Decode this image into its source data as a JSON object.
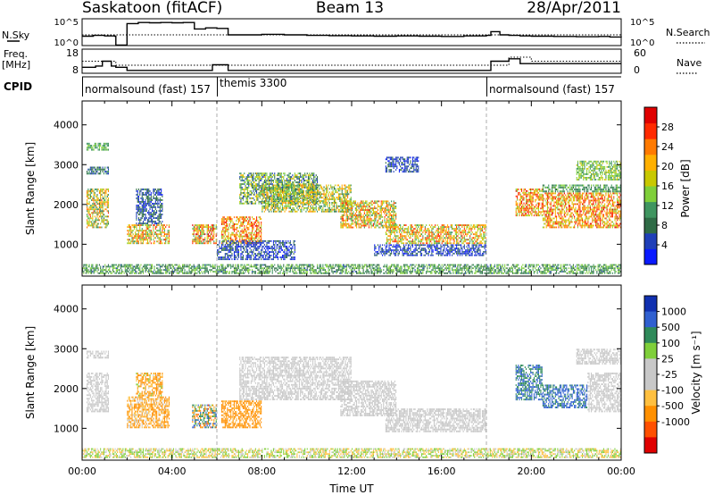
{
  "header": {
    "station": "Saskatoon (fitACF)",
    "beam": "Beam 13",
    "date": "28/Apr/2011"
  },
  "colors": {
    "power_scale": [
      "#0a1aff",
      "#1f3fb8",
      "#2f6b46",
      "#3f9560",
      "#7fcf3a",
      "#c8c800",
      "#ffb000",
      "#ff7a00",
      "#ff2a00",
      "#e00000"
    ],
    "velocity_scale": [
      "#e00000",
      "#ff5000",
      "#ff9000",
      "#ffc040",
      "#c8c8c8",
      "#c8c8c8",
      "#7fcf3a",
      "#2f8a5a",
      "#3060d0",
      "#1030b0"
    ]
  },
  "chart_data": [
    {
      "type": "line",
      "name": "noise-panel",
      "left_label": "N.Sky",
      "right_label": "N.Search",
      "left_ticks": [
        "10^5",
        "10^0"
      ],
      "right_ticks": [
        "10^5",
        "10^0"
      ],
      "x": [
        0,
        0.5,
        1.0,
        1.45,
        1.5,
        1.6,
        2.0,
        2.5,
        3.0,
        3.5,
        4.0,
        4.5,
        5.0,
        5.5,
        6.0,
        6.5,
        7.0,
        8.0,
        9.0,
        10.0,
        11.0,
        12.0,
        13.0,
        14.0,
        15.0,
        16.0,
        17.0,
        18.0,
        18.2,
        18.6,
        19.0,
        19.5,
        20.0,
        21.0,
        22.0,
        23.0,
        23.5,
        24.0
      ],
      "sky": [
        0.35,
        0.38,
        0.36,
        0.35,
        0.02,
        0.02,
        0.82,
        0.86,
        0.85,
        0.86,
        0.85,
        0.86,
        0.62,
        0.66,
        0.64,
        0.4,
        0.4,
        0.42,
        0.4,
        0.38,
        0.37,
        0.36,
        0.35,
        0.36,
        0.35,
        0.34,
        0.36,
        0.38,
        0.52,
        0.4,
        0.38,
        0.36,
        0.35,
        0.34,
        0.33,
        0.34,
        0.32,
        0.3
      ],
      "search": [
        0.4,
        0.4,
        0.4,
        0.4,
        0.4,
        0.4,
        0.4,
        0.4,
        0.4,
        0.4,
        0.4,
        0.4,
        0.4,
        0.4,
        0.4,
        0.4,
        0.4,
        0.4,
        0.4,
        0.4,
        0.4,
        0.4,
        0.4,
        0.4,
        0.4,
        0.4,
        0.4,
        0.4,
        0.4,
        0.4,
        0.4,
        0.4,
        0.4,
        0.4,
        0.4,
        0.4,
        0.4,
        0.4
      ]
    },
    {
      "type": "line",
      "name": "freq-nave-panel",
      "left_label": "Freq.",
      "left_unit": "[MHz]",
      "right_label": "Nave",
      "left_ticks": [
        "18",
        "8"
      ],
      "right_ticks": [
        "60",
        "0"
      ],
      "x": [
        0,
        0.6,
        0.9,
        1.3,
        1.5,
        2.0,
        2.5,
        3.0,
        4.0,
        5.0,
        5.8,
        6.0,
        6.5,
        7.0,
        8.0,
        10.0,
        12.0,
        14.0,
        16.0,
        18.0,
        18.2,
        19.0,
        19.5,
        20.0,
        21.0,
        22.0,
        23.0,
        24.0
      ],
      "freq": [
        10.5,
        11,
        13,
        11,
        10.5,
        9.2,
        9.2,
        9.2,
        9.2,
        9.2,
        11.5,
        11.5,
        9.2,
        9.2,
        9.2,
        9.2,
        9.2,
        9.2,
        9.2,
        9.2,
        13,
        14,
        12,
        12,
        12,
        12,
        12,
        12
      ],
      "nave": [
        30,
        30,
        30,
        30,
        20,
        20,
        20,
        20,
        20,
        20,
        20,
        20,
        20,
        20,
        20,
        20,
        20,
        20,
        20,
        20,
        20,
        40,
        40,
        30,
        30,
        30,
        30,
        30
      ]
    },
    {
      "type": "table",
      "name": "cpid-bar",
      "label": "CPID",
      "segments": [
        {
          "start": 0,
          "end": 6,
          "text": "normalsound (fast) 157"
        },
        {
          "start": 6,
          "end": 18,
          "text": "themis 3300"
        },
        {
          "start": 18,
          "end": 24,
          "text": "normalsound (fast) 157"
        }
      ]
    },
    {
      "type": "heatmap",
      "name": "power",
      "ylabel": "Slant Range [km]",
      "xlim": [
        0,
        24
      ],
      "ylim": [
        200,
        4600
      ],
      "yticks": [
        1000,
        2000,
        3000,
        4000
      ],
      "colorbar_label": "Power [dB]",
      "colorbar_ticks": [
        4,
        8,
        12,
        16,
        20,
        24,
        28
      ],
      "colorbar_range": [
        0,
        32
      ],
      "regions": [
        {
          "t0": 0.2,
          "t1": 1.2,
          "r0": 1400,
          "r1": 2400,
          "vmin": 8,
          "vmax": 26
        },
        {
          "t0": 0.2,
          "t1": 1.2,
          "r0": 2750,
          "r1": 2950,
          "vmin": 4,
          "vmax": 12
        },
        {
          "t0": 0.2,
          "t1": 1.2,
          "r0": 3350,
          "r1": 3550,
          "vmin": 10,
          "vmax": 14
        },
        {
          "t0": 2.0,
          "t1": 3.9,
          "r0": 1000,
          "r1": 1500,
          "vmin": 10,
          "vmax": 28
        },
        {
          "t0": 2.4,
          "t1": 3.6,
          "r0": 1500,
          "r1": 2400,
          "vmin": 2,
          "vmax": 10
        },
        {
          "t0": 4.9,
          "t1": 6.0,
          "r0": 1000,
          "r1": 1500,
          "vmin": 10,
          "vmax": 30
        },
        {
          "t0": 6.2,
          "t1": 8.0,
          "r0": 1000,
          "r1": 1700,
          "vmin": 14,
          "vmax": 30
        },
        {
          "t0": 6.0,
          "t1": 9.5,
          "r0": 600,
          "r1": 1100,
          "vmin": 2,
          "vmax": 8
        },
        {
          "t0": 7.0,
          "t1": 10.5,
          "r0": 2000,
          "r1": 2800,
          "vmin": 4,
          "vmax": 20
        },
        {
          "t0": 8.0,
          "t1": 12.0,
          "r0": 1800,
          "r1": 2500,
          "vmin": 8,
          "vmax": 24
        },
        {
          "t0": 11.5,
          "t1": 14.0,
          "r0": 1400,
          "r1": 2100,
          "vmin": 10,
          "vmax": 28
        },
        {
          "t0": 13.5,
          "t1": 18.0,
          "r0": 1000,
          "r1": 1500,
          "vmin": 10,
          "vmax": 28
        },
        {
          "t0": 13.0,
          "t1": 18.0,
          "r0": 700,
          "r1": 1000,
          "vmin": 2,
          "vmax": 8
        },
        {
          "t0": 13.5,
          "t1": 15.0,
          "r0": 2800,
          "r1": 3200,
          "vmin": 2,
          "vmax": 8
        },
        {
          "t0": 19.3,
          "t1": 20.5,
          "r0": 1700,
          "r1": 2400,
          "vmin": 14,
          "vmax": 30
        },
        {
          "t0": 20.5,
          "t1": 24.0,
          "r0": 1400,
          "r1": 2300,
          "vmin": 14,
          "vmax": 30
        },
        {
          "t0": 20.5,
          "t1": 24.0,
          "r0": 2300,
          "r1": 2500,
          "vmin": 8,
          "vmax": 14
        },
        {
          "t0": 22.0,
          "t1": 24.0,
          "r0": 2600,
          "r1": 3100,
          "vmin": 10,
          "vmax": 18
        },
        {
          "t0": 0.0,
          "t1": 24.0,
          "r0": 250,
          "r1": 500,
          "vmin": 6,
          "vmax": 16
        }
      ]
    },
    {
      "type": "heatmap",
      "name": "velocity",
      "ylabel": "Slant Range [km]",
      "xlabel": "Time UT",
      "xlim": [
        0,
        24
      ],
      "ylim": [
        200,
        4600
      ],
      "yticks": [
        1000,
        2000,
        3000,
        4000
      ],
      "xticks": [
        "00:00",
        "04:00",
        "08:00",
        "12:00",
        "16:00",
        "20:00",
        "00:00"
      ],
      "colorbar_label": "Velocity [m s⁻¹]",
      "colorbar_ticks": [
        -1000,
        -500,
        -100,
        -25,
        25,
        100,
        500,
        1000
      ],
      "regions": [
        {
          "t0": 0.2,
          "t1": 1.2,
          "r0": 1400,
          "r1": 2400,
          "vmin": -20,
          "vmax": 20
        },
        {
          "t0": 0.2,
          "t1": 1.2,
          "r0": 2750,
          "r1": 2950,
          "vmin": -20,
          "vmax": 20
        },
        {
          "t0": 2.0,
          "t1": 3.9,
          "r0": 1000,
          "r1": 1800,
          "vmin": -300,
          "vmax": 20
        },
        {
          "t0": 2.4,
          "t1": 3.6,
          "r0": 1800,
          "r1": 2400,
          "vmin": -400,
          "vmax": 60
        },
        {
          "t0": 4.9,
          "t1": 6.0,
          "r0": 1000,
          "r1": 1600,
          "vmin": -600,
          "vmax": 800
        },
        {
          "t0": 6.2,
          "t1": 8.0,
          "r0": 1000,
          "r1": 1700,
          "vmin": -500,
          "vmax": -50
        },
        {
          "t0": 7.0,
          "t1": 12.0,
          "r0": 1700,
          "r1": 2800,
          "vmin": -20,
          "vmax": 20
        },
        {
          "t0": 11.5,
          "t1": 14.0,
          "r0": 1300,
          "r1": 2200,
          "vmin": -20,
          "vmax": 20
        },
        {
          "t0": 13.5,
          "t1": 18.0,
          "r0": 900,
          "r1": 1500,
          "vmin": -20,
          "vmax": 20
        },
        {
          "t0": 19.3,
          "t1": 20.5,
          "r0": 1700,
          "r1": 2600,
          "vmin": 300,
          "vmax": 700
        },
        {
          "t0": 20.5,
          "t1": 22.5,
          "r0": 1500,
          "r1": 2100,
          "vmin": 300,
          "vmax": 1000
        },
        {
          "t0": 22.5,
          "t1": 24.0,
          "r0": 1400,
          "r1": 2400,
          "vmin": -20,
          "vmax": 20
        },
        {
          "t0": 22.0,
          "t1": 24.0,
          "r0": 2600,
          "r1": 3000,
          "vmin": -20,
          "vmax": 20
        },
        {
          "t0": 0.0,
          "t1": 24.0,
          "r0": 250,
          "r1": 500,
          "vmin": -100,
          "vmax": 100
        }
      ]
    }
  ]
}
